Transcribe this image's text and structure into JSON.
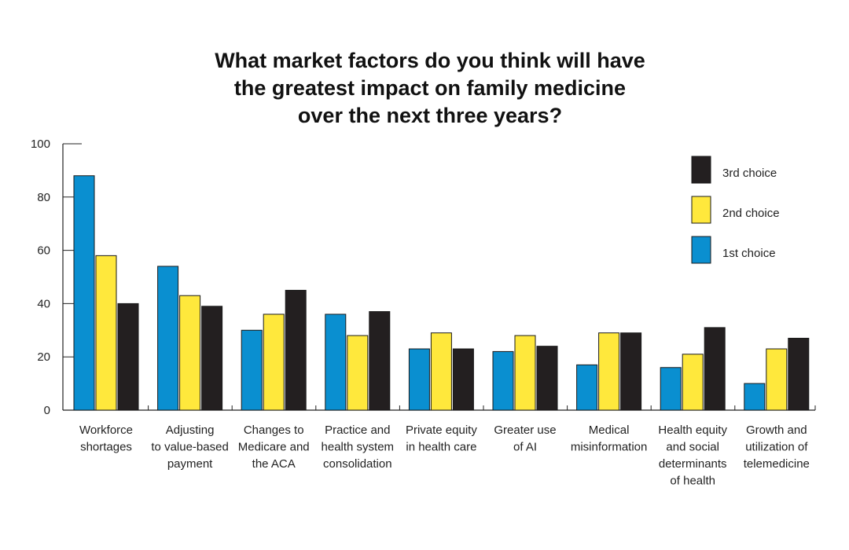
{
  "chart_data": {
    "type": "bar",
    "title": [
      "What market factors do you think will have",
      "the greatest impact on family medicine",
      "over the next three years?"
    ],
    "xlabel": "",
    "ylabel": "",
    "ylim": [
      0,
      100
    ],
    "yticks": [
      0,
      20,
      40,
      60,
      80,
      100
    ],
    "grid": false,
    "legend_position": "top-right",
    "categories": [
      [
        "Workforce",
        "shortages"
      ],
      [
        "Adjusting",
        "to value-based",
        "payment"
      ],
      [
        "Changes to",
        "Medicare and",
        "the ACA"
      ],
      [
        "Practice and",
        "health system",
        "consolidation"
      ],
      [
        "Private equity",
        "in health care"
      ],
      [
        "Greater use",
        "of AI"
      ],
      [
        "Medical",
        "misinformation"
      ],
      [
        "Health equity",
        "and social",
        "determinants",
        "of health"
      ],
      [
        "Growth and",
        "utilization of",
        "telemedicine"
      ]
    ],
    "series": [
      {
        "name": "1st choice",
        "color": "#0a8fd0",
        "values": [
          88,
          54,
          30,
          36,
          23,
          22,
          17,
          16,
          10
        ]
      },
      {
        "name": "2nd choice",
        "color": "#ffe83c",
        "values": [
          58,
          43,
          36,
          28,
          29,
          28,
          29,
          21,
          23
        ]
      },
      {
        "name": "3rd choice",
        "color": "#231f20",
        "values": [
          40,
          39,
          45,
          37,
          23,
          24,
          29,
          31,
          27
        ]
      }
    ],
    "legend_order": [
      "3rd choice",
      "2nd choice",
      "1st choice"
    ]
  }
}
